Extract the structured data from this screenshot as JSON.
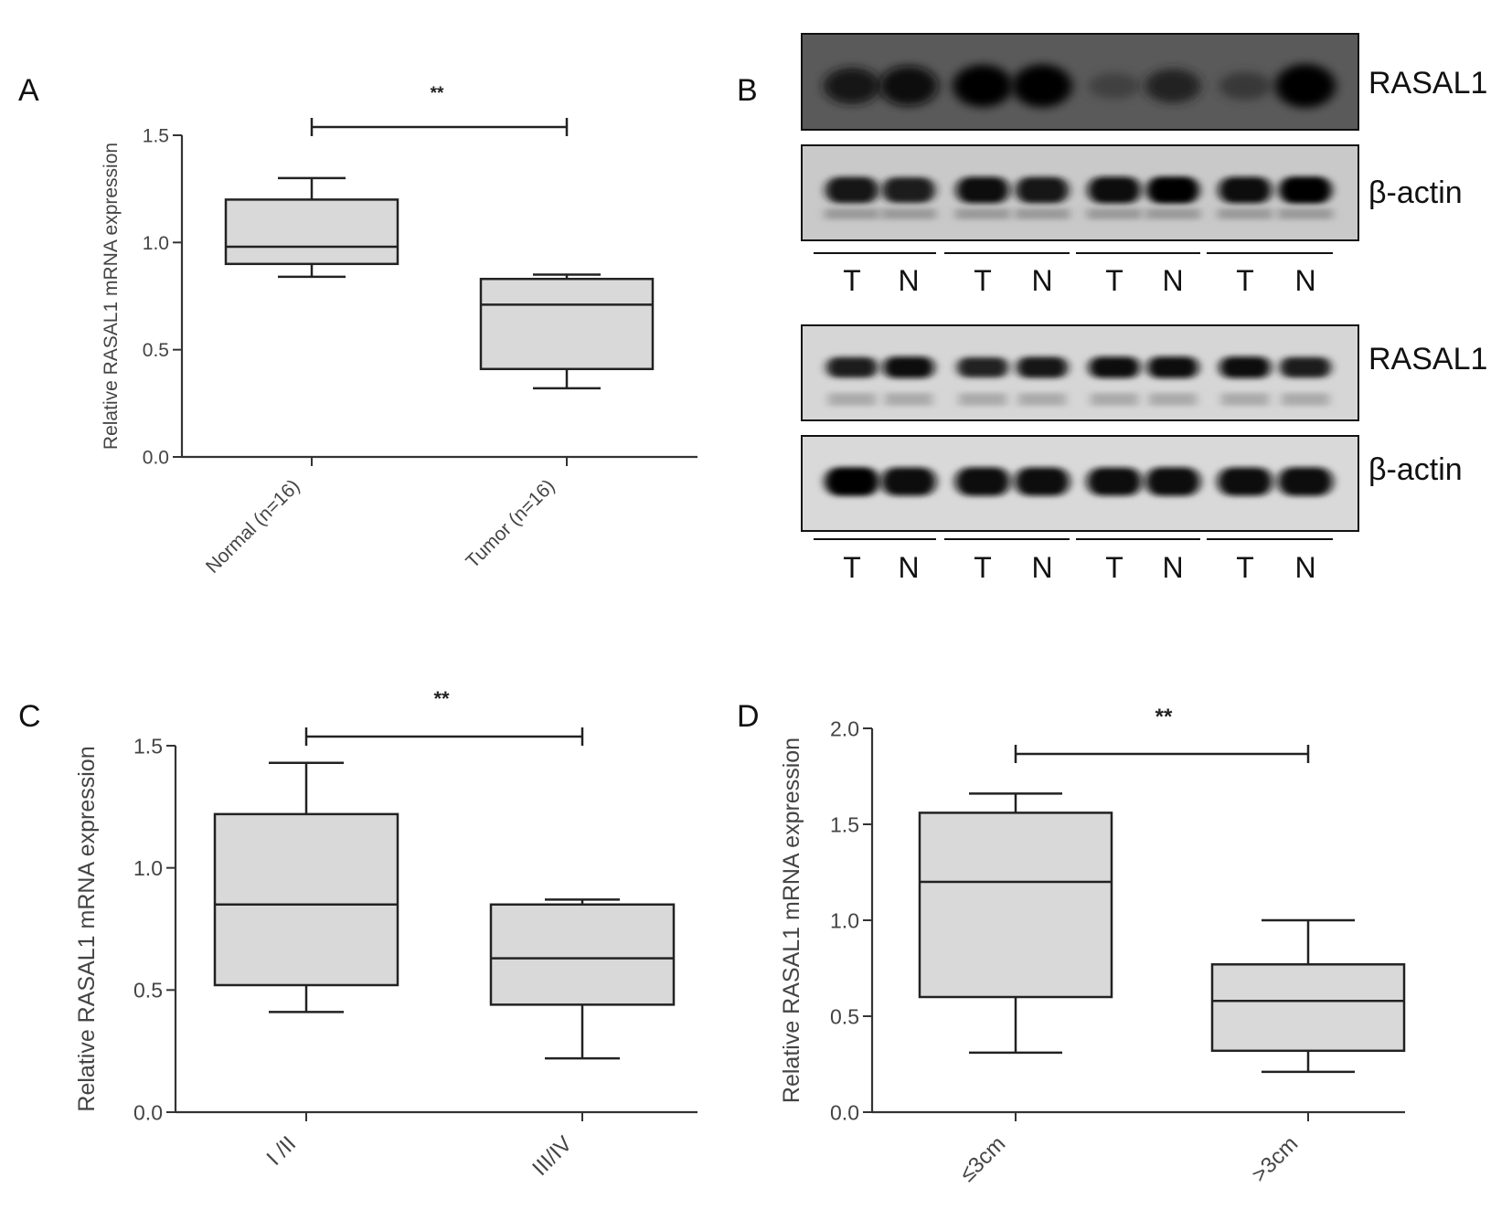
{
  "panels": {
    "a": "A",
    "b": "B",
    "c": "C",
    "d": "D"
  },
  "chart_data": [
    {
      "id": "A",
      "type": "box",
      "ylabel": "Relative RASAL1 mRNA expression",
      "ylim": [
        0,
        1.5
      ],
      "yticks": [
        "0.0",
        "0.5",
        "1.0",
        "1.5"
      ],
      "ytick_values": [
        0,
        0.5,
        1.0,
        1.5
      ],
      "categories": [
        "Normal (n=16)",
        "Tumor (n=16)"
      ],
      "boxes": [
        {
          "min": 0.84,
          "q1": 0.9,
          "median": 0.98,
          "q3": 1.2,
          "max": 1.3
        },
        {
          "min": 0.32,
          "q1": 0.41,
          "median": 0.71,
          "q3": 0.83,
          "max": 0.85
        }
      ],
      "significance": "**"
    },
    {
      "id": "C",
      "type": "box",
      "ylabel": "Relative RASAL1 mRNA expression",
      "ylim": [
        0,
        1.5
      ],
      "yticks": [
        "0.0",
        "0.5",
        "1.0",
        "1.5"
      ],
      "ytick_values": [
        0,
        0.5,
        1.0,
        1.5
      ],
      "categories": [
        "I /II",
        "III/IV"
      ],
      "boxes": [
        {
          "min": 0.41,
          "q1": 0.52,
          "median": 0.85,
          "q3": 1.22,
          "max": 1.43
        },
        {
          "min": 0.22,
          "q1": 0.44,
          "median": 0.63,
          "q3": 0.85,
          "max": 0.87
        }
      ],
      "significance": "**"
    },
    {
      "id": "D",
      "type": "box",
      "ylabel": "Relative RASAL1 mRNA expression",
      "ylim": [
        0,
        2.0
      ],
      "yticks": [
        "0.0",
        "0.5",
        "1.0",
        "1.5",
        "2.0"
      ],
      "ytick_values": [
        0,
        0.5,
        1.0,
        1.5,
        2.0
      ],
      "categories": [
        "≤3cm",
        ">3cm"
      ],
      "boxes": [
        {
          "min": 0.31,
          "q1": 0.6,
          "median": 1.2,
          "q3": 1.56,
          "max": 1.66
        },
        {
          "min": 0.21,
          "q1": 0.32,
          "median": 0.58,
          "q3": 0.77,
          "max": 1.0
        }
      ],
      "significance": "**"
    }
  ],
  "blot": {
    "top_set": {
      "target_label": "RASAL1",
      "control_label": "β-actin",
      "lanes": [
        "T",
        "N",
        "T",
        "N",
        "T",
        "N",
        "T",
        "N"
      ],
      "target_intensity": [
        0.72,
        0.85,
        0.95,
        0.97,
        0.3,
        0.62,
        0.38,
        1.0
      ],
      "control_intensity": [
        0.9,
        0.85,
        0.92,
        0.9,
        0.95,
        0.97,
        0.93,
        0.97
      ]
    },
    "bottom_set": {
      "target_label": "RASAL1",
      "control_label": "β-actin",
      "lanes": [
        "T",
        "N",
        "T",
        "N",
        "T",
        "N",
        "T",
        "N"
      ],
      "target_intensity": [
        0.85,
        0.95,
        0.82,
        0.9,
        0.92,
        0.95,
        0.95,
        0.85
      ],
      "control_intensity": [
        0.97,
        0.93,
        0.95,
        0.93,
        0.92,
        0.95,
        0.93,
        0.95
      ]
    }
  }
}
